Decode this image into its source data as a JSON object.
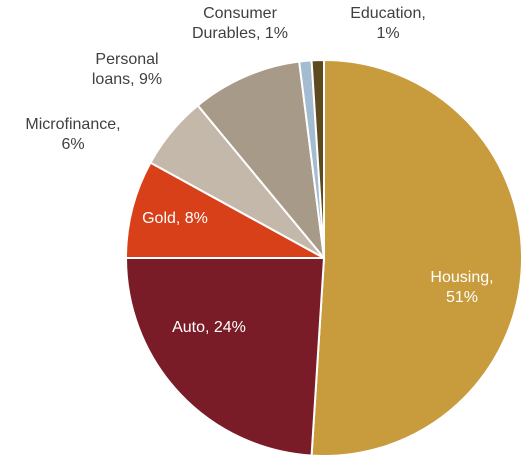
{
  "chart_data": {
    "type": "pie",
    "title": "",
    "start_angle_deg": 0,
    "direction": "clockwise",
    "slices": [
      {
        "label": "Housing",
        "value": 51,
        "value_text": "51%",
        "color": "#c89b3c",
        "label_lines": [
          "Housing,",
          "51%"
        ],
        "label_color": "#ffffff"
      },
      {
        "label": "Auto",
        "value": 24,
        "value_text": "24%",
        "color": "#7a1c28",
        "label_lines": [
          "Auto, 24%"
        ],
        "label_color": "#ffffff"
      },
      {
        "label": "Gold",
        "value": 8,
        "value_text": "8%",
        "color": "#d8401a",
        "label_lines": [
          "Gold, 8%"
        ],
        "label_color": "#ffffff"
      },
      {
        "label": "Microfinance",
        "value": 6,
        "value_text": "6%",
        "color": "#c4b8aa",
        "label_lines": [
          "Microfinance,",
          "6%"
        ],
        "label_color": "#404040"
      },
      {
        "label": "Personal loans",
        "value": 9,
        "value_text": "9%",
        "color": "#a89a88",
        "label_lines": [
          "Personal",
          "loans, 9%"
        ],
        "label_color": "#404040"
      },
      {
        "label": "Consumer Durables",
        "value": 1,
        "value_text": "1%",
        "color": "#a3bcd0",
        "label_lines": [
          "Consumer",
          "Durables, 1%"
        ],
        "label_color": "#404040"
      },
      {
        "label": "Education",
        "value": 1,
        "value_text": "1%",
        "color": "#5e4a20",
        "label_lines": [
          "Education,",
          "1%"
        ],
        "label_color": "#404040"
      }
    ]
  }
}
